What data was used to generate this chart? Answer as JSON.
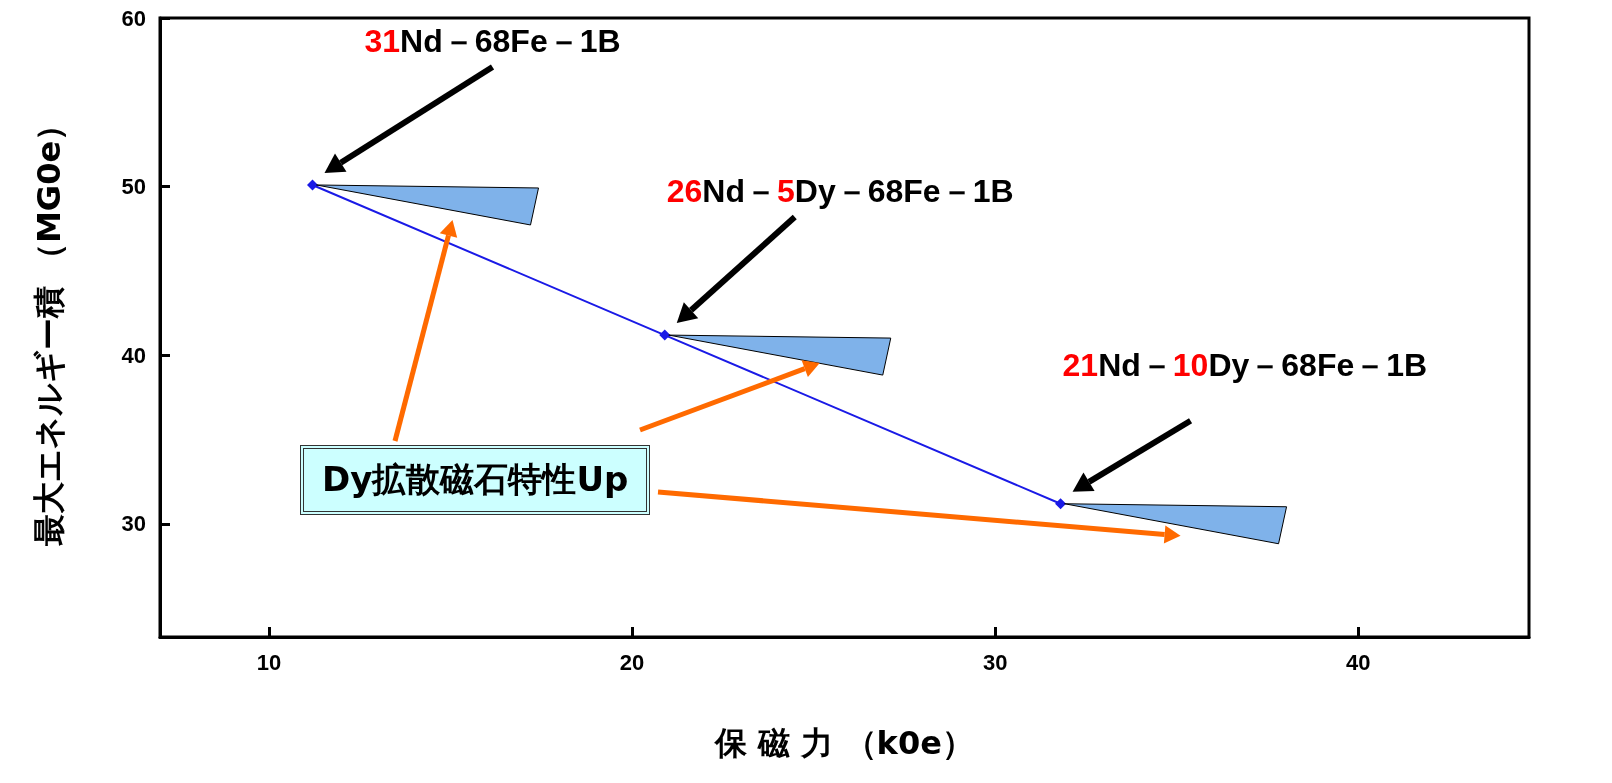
{
  "chart_data": {
    "type": "line",
    "xlabel": "保 磁 力 （k0e）",
    "ylabel": "最大エネルギー積 （MG0e）",
    "x": [
      11.2,
      20.9,
      31.8
    ],
    "series": [
      {
        "color": "#1a1ae6",
        "values": [
          50.1,
          41.2,
          31.2
        ]
      }
    ],
    "xlim": [
      7,
      44.7
    ],
    "xticks": [
      10,
      20,
      30,
      40
    ],
    "ylim": [
      23.3,
      60
    ],
    "yticks": [
      30,
      40,
      50,
      60
    ],
    "grid": false,
    "marker": "diamond",
    "line_style": "solid",
    "annotations": [
      "31Nd－68Fe－1B",
      "26Nd－5Dy－68Fe－1B",
      "21Nd－10Dy－68Fe－1B",
      "Dy拡散磁石特性Up"
    ]
  }
}
